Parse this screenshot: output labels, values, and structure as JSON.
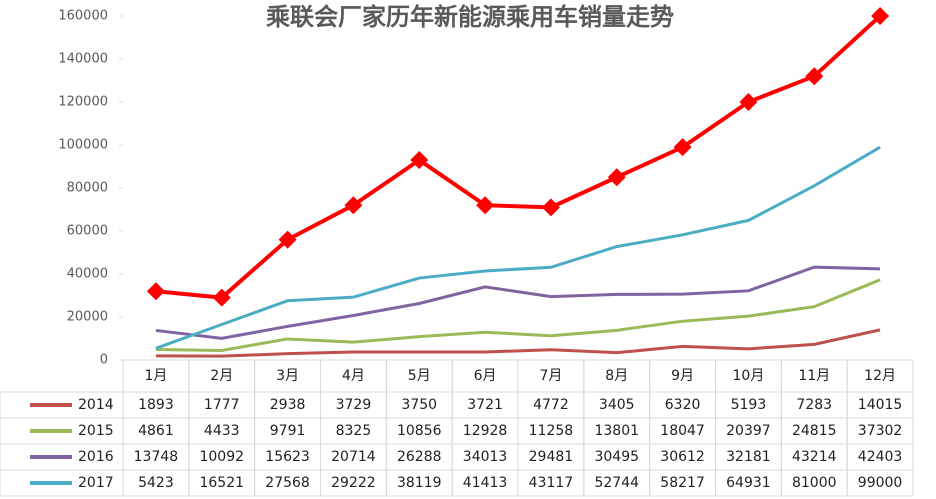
{
  "chart_data": {
    "type": "line",
    "title": "乘联会厂家历年新能源乘用车销量走势",
    "categories": [
      "1月",
      "2月",
      "3月",
      "4月",
      "5月",
      "6月",
      "7月",
      "8月",
      "9月",
      "10月",
      "11月",
      "12月"
    ],
    "series": [
      {
        "name": "2014",
        "color": "#c0504d",
        "values": [
          1893,
          1777,
          2938,
          3729,
          3750,
          3721,
          4772,
          3405,
          6320,
          5193,
          7283,
          14015
        ]
      },
      {
        "name": "2015",
        "color": "#9bbb59",
        "values": [
          4861,
          4433,
          9791,
          8325,
          10856,
          12928,
          11258,
          13801,
          18047,
          20397,
          24815,
          37302
        ]
      },
      {
        "name": "2016",
        "color": "#8064a2",
        "values": [
          13748,
          10092,
          15623,
          20714,
          26288,
          34013,
          29481,
          30495,
          30612,
          32181,
          43214,
          42403
        ]
      },
      {
        "name": "2017",
        "color": "#4bacc6",
        "values": [
          5423,
          16521,
          27568,
          29222,
          38119,
          41413,
          43117,
          52744,
          58217,
          64931,
          81000,
          99000
        ]
      },
      {
        "color": "#ff0000",
        "marker": "diamond",
        "values": [
          32000,
          29000,
          56000,
          72000,
          93000,
          72000,
          71000,
          85000,
          99000,
          120000,
          132000,
          160000
        ]
      }
    ],
    "ylim": [
      0,
      160000
    ],
    "yticks": [
      0,
      20000,
      40000,
      60000,
      80000,
      100000,
      120000,
      140000,
      160000
    ]
  }
}
